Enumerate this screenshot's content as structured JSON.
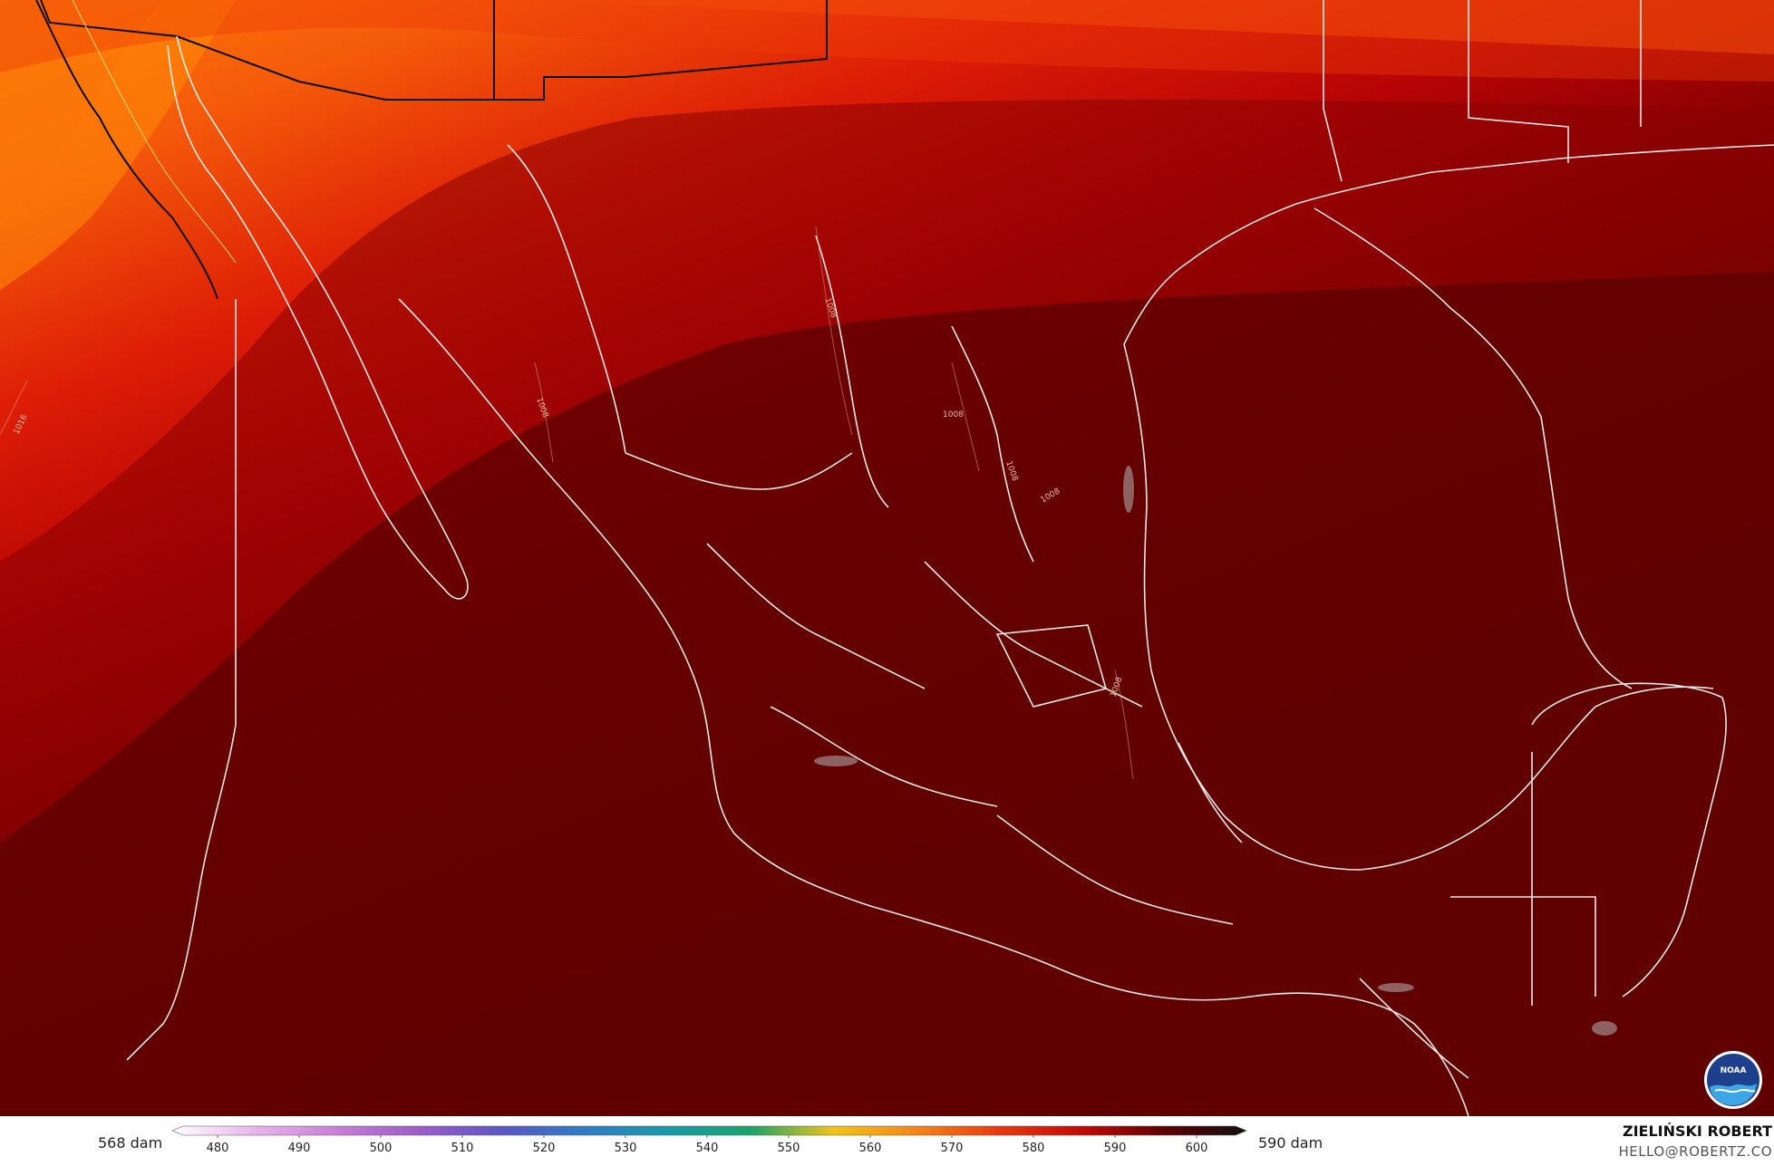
{
  "legend": {
    "min_label": "568 dam",
    "max_label": "590 dam",
    "ticks": [
      "480",
      "490",
      "500",
      "510",
      "520",
      "530",
      "540",
      "550",
      "560",
      "570",
      "580",
      "590",
      "600"
    ],
    "colors": [
      "#ffffff",
      "#e8b4ec",
      "#c77fd6",
      "#9b5cc8",
      "#5b57c4",
      "#2f7cc4",
      "#1a9aa8",
      "#1aa36a",
      "#f0c419",
      "#f5861a",
      "#e83a0f",
      "#c20a05",
      "#5e0000",
      "#111111"
    ]
  },
  "credit": {
    "name": "ZIELIŃSKI ROBERT",
    "email": "HELLO@ROBERTZ.CO"
  },
  "logo": {
    "text": "NOAA"
  },
  "map": {
    "isobar_labels": [
      "1008",
      "1008",
      "1008",
      "1008",
      "1008",
      "1008",
      "1016"
    ]
  }
}
